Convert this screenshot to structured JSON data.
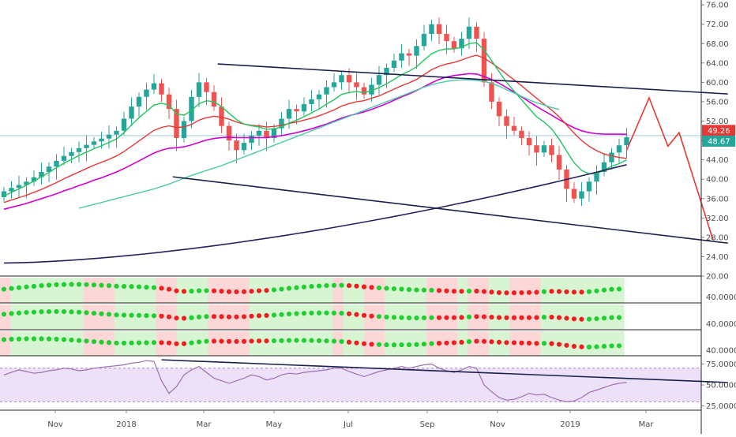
{
  "chart_data": [
    {
      "type": "candlestick",
      "timeframe": "weekly",
      "x_labels": [
        "Nov",
        "2018",
        "Mar",
        "May",
        "Jul",
        "Sep",
        "Nov",
        "2019",
        "Mar"
      ],
      "y_ticks": [
        20,
        24,
        28,
        32,
        36,
        40,
        44,
        48,
        52,
        56,
        60,
        64,
        68,
        72,
        76
      ],
      "y_tick_labels": [
        "20.00",
        "24.00",
        "28.00",
        "32.00",
        "36.00",
        "40.00",
        "44.00",
        "48.00",
        "52.00",
        "56.00",
        "60.00",
        "64.00",
        "68.00",
        "72.00",
        "76.00"
      ],
      "ylim": [
        20,
        77
      ],
      "price_badges": [
        {
          "label": "49.26",
          "value": 49.26,
          "color": "#e53935"
        },
        {
          "label": "48.67",
          "value": 48.67,
          "color": "#26a69a"
        }
      ],
      "closes": [
        37.5,
        38.2,
        38.8,
        39.5,
        40.4,
        41.5,
        42.6,
        43.8,
        44.8,
        45.6,
        46.4,
        47.1,
        47.8,
        48.4,
        49.2,
        50.0,
        52.5,
        55.0,
        57.0,
        58.5,
        59.8,
        57.5,
        54.5,
        48.5,
        52.0,
        57.0,
        60.0,
        58.0,
        55.0,
        51.0,
        48.0,
        46.0,
        47.5,
        49.0,
        50.0,
        48.5,
        50.5,
        52.5,
        54.5,
        54.0,
        55.5,
        56.5,
        57.5,
        59.0,
        60.0,
        61.5,
        60.0,
        59.0,
        57.5,
        59.5,
        61.5,
        63.0,
        64.5,
        66.0,
        65.5,
        67.5,
        70.0,
        72.0,
        70.0,
        68.5,
        67.0,
        69.0,
        71.5,
        69.0,
        60.0,
        56.0,
        53.0,
        51.0,
        50.0,
        48.5,
        47.0,
        45.5,
        47.0,
        45.0,
        42.0,
        38.0,
        36.0,
        37.5,
        39.5,
        41.5,
        43.5,
        45.5,
        47.0,
        48.67
      ],
      "ema_fast": [
        36.5,
        37.3,
        38.0,
        38.8,
        39.6,
        40.5,
        41.4,
        42.4,
        43.3,
        44.1,
        44.9,
        45.6,
        46.3,
        46.9,
        47.6,
        48.3,
        49.6,
        51.2,
        52.7,
        54.0,
        55.3,
        55.7,
        55.3,
        53.5,
        53.2,
        54.2,
        55.6,
        56.2,
        56.0,
        55.0,
        53.6,
        52.3,
        51.4,
        51.0,
        50.8,
        50.3,
        50.4,
        50.8,
        51.6,
        52.2,
        52.9,
        53.7,
        54.5,
        55.5,
        56.4,
        57.5,
        57.9,
        58.1,
        57.9,
        58.3,
        58.9,
        59.7,
        60.6,
        61.6,
        62.3,
        63.2,
        64.6,
        65.9,
        66.6,
        66.9,
        66.9,
        67.3,
        68.0,
        68.2,
        66.7,
        64.5,
        62.2,
        60.0,
        58.2,
        56.4,
        54.6,
        52.9,
        51.8,
        50.4,
        48.3,
        45.8,
        43.4,
        41.8,
        41.1,
        41.2,
        41.8,
        42.7,
        43.2,
        44.0
      ],
      "ema_slow": [
        35.2,
        35.7,
        36.2,
        36.7,
        37.3,
        37.9,
        38.6,
        39.3,
        40.1,
        40.8,
        41.5,
        42.2,
        42.9,
        43.5,
        44.1,
        44.8,
        45.7,
        46.8,
        47.9,
        49.0,
        50.1,
        50.7,
        51.0,
        50.7,
        50.8,
        51.3,
        52.2,
        52.7,
        53.0,
        52.8,
        52.4,
        51.8,
        51.4,
        51.1,
        51.0,
        50.8,
        50.9,
        51.1,
        51.5,
        51.8,
        52.2,
        52.6,
        53.1,
        53.7,
        54.3,
        55.1,
        55.6,
        56.0,
        56.2,
        56.7,
        57.2,
        57.9,
        58.6,
        59.3,
        59.9,
        60.6,
        61.6,
        62.6,
        63.3,
        63.8,
        64.1,
        64.6,
        65.2,
        65.6,
        65.0,
        64.0,
        62.9,
        61.7,
        60.5,
        59.3,
        58.0,
        56.7,
        55.5,
        54.3,
        52.9,
        51.2,
        49.5,
        48.0,
        46.8,
        45.9,
        45.2,
        44.8,
        44.5,
        44.3
      ],
      "ma_magenta": [
        33.8,
        34.2,
        34.6,
        35.0,
        35.5,
        36.0,
        36.5,
        37.0,
        37.6,
        38.1,
        38.7,
        39.2,
        39.8,
        40.3,
        40.9,
        41.5,
        42.2,
        43.0,
        43.8,
        44.6,
        45.4,
        46.0,
        46.4,
        46.5,
        46.7,
        47.1,
        47.6,
        48.1,
        48.4,
        48.6,
        48.7,
        48.6,
        48.6,
        48.6,
        48.6,
        48.6,
        48.8,
        49.0,
        49.3,
        49.6,
        50.0,
        50.4,
        50.9,
        51.4,
        52.0,
        52.6,
        53.1,
        53.5,
        53.9,
        54.4,
        55.0,
        55.6,
        56.3,
        57.0,
        57.6,
        58.3,
        59.1,
        59.9,
        60.6,
        61.1,
        61.4,
        61.6,
        61.8,
        61.7,
        61.2,
        60.6,
        59.8,
        58.9,
        58.0,
        57.0,
        56.0,
        55.0,
        54.1,
        53.2,
        52.3,
        51.4,
        50.6,
        50.0,
        49.6,
        49.4,
        49.3,
        49.3,
        49.3,
        49.26
      ],
      "ma_teal_start": 10,
      "ma_teal": [
        34.0,
        34.4,
        34.8,
        35.2,
        35.6,
        36.0,
        36.4,
        36.8,
        37.2,
        37.6,
        38.0,
        38.5,
        39.0,
        39.6,
        40.2,
        40.8,
        41.3,
        41.8,
        42.3,
        42.8,
        43.4,
        44.0,
        44.6,
        45.2,
        45.8,
        46.4,
        47.0,
        47.6,
        48.2,
        48.8,
        49.4,
        50.0,
        50.6,
        51.2,
        51.8,
        52.4,
        53.0,
        53.6,
        54.2,
        54.8,
        55.4,
        56.0,
        56.6,
        57.2,
        57.8,
        58.4,
        59.0,
        59.5,
        59.9,
        60.2,
        60.4,
        60.5,
        60.5,
        60.4,
        60.2,
        59.8,
        59.2,
        58.5,
        57.8,
        57.1,
        56.4,
        55.8,
        55.3,
        54.8,
        54.4
      ],
      "ma_longterm_navy": {
        "x": [
          0,
          83
        ],
        "values": [
          22.7,
          43.0
        ]
      },
      "trendlines": [
        {
          "name": "upper-channel",
          "x": [
            28.5,
            96.5
          ],
          "values": [
            63.8,
            57.6
          ],
          "color": "#1a1f4a"
        },
        {
          "name": "lower-channel",
          "x": [
            22.5,
            96.5
          ],
          "values": [
            40.5,
            26.8
          ],
          "color": "#1a1f4a"
        }
      ],
      "projection": {
        "x": [
          83,
          86,
          88.5,
          90,
          94.5
        ],
        "values": [
          46.0,
          56.8,
          46.8,
          49.6,
          27.5
        ],
        "color": "#e53935"
      }
    },
    {
      "type": "dot-indicator",
      "panes": [
        {
          "name": "indicator-1",
          "y_tick_label": "40.0000"
        },
        {
          "name": "indicator-2",
          "y_tick_label": "40.0000"
        },
        {
          "name": "indicator-3",
          "y_tick_label": "40.0000"
        }
      ]
    },
    {
      "type": "line",
      "name": "oscillator",
      "y_ticks": [
        25,
        50,
        75
      ],
      "y_tick_labels": [
        "25.0000",
        "50.0000",
        "75.0000"
      ],
      "ylim": [
        20,
        82
      ],
      "values": [
        62,
        65,
        68,
        66,
        64,
        65,
        67,
        68,
        70,
        69,
        67,
        68,
        70,
        71,
        72,
        73,
        74,
        76,
        77,
        79,
        78,
        55,
        40,
        48,
        62,
        68,
        72,
        65,
        58,
        55,
        52,
        55,
        58,
        62,
        60,
        56,
        58,
        62,
        64,
        63,
        65,
        66,
        67,
        68,
        70,
        70,
        66,
        63,
        60,
        63,
        66,
        68,
        70,
        72,
        70,
        72,
        74,
        75,
        70,
        67,
        65,
        68,
        72,
        70,
        50,
        42,
        35,
        32,
        33,
        36,
        40,
        38,
        39,
        35,
        32,
        30,
        31,
        35,
        41,
        44,
        47,
        50,
        52,
        53
      ],
      "trendline": {
        "x": [
          21,
          96.5
        ],
        "values": [
          80,
          53
        ]
      }
    }
  ],
  "colors": {
    "up": "#26a69a",
    "down": "#ef5350",
    "ema_fast": "#22c55e",
    "ema_slow": "#e53935",
    "ma_magenta": "#d100d1",
    "ma_teal": "#4cc9a8",
    "ma_navy": "#23235c",
    "osc_line": "#9c6fb0",
    "osc_band": "#ede1fa",
    "bg_green": "#d7f5d2",
    "bg_red": "#fbd7d7",
    "dot_green": "#1fcf2f",
    "dot_red": "#ef1f1f"
  }
}
